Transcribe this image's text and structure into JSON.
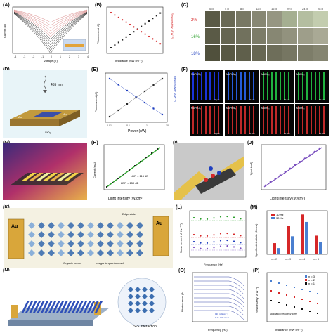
{
  "panels": {
    "A": {
      "label": "(A)",
      "ylabel": "Current (A)",
      "xlabel": "Voltage (V)",
      "xticks": [
        "-4",
        "-3",
        "-2",
        "-1",
        "0",
        "1",
        "2",
        "3",
        "4"
      ]
    },
    "B": {
      "label": "(B)",
      "ylabel_left": "Photocurrent (A)",
      "ylabel_right": "Responsivity (A W⁻¹)",
      "xlabel": "Irradiance (mW cm⁻²)"
    },
    "C": {
      "label": "(C)",
      "columns": [
        "0 d",
        "4 d",
        "8 d",
        "12 d",
        "16 d",
        "20 d",
        "24 d",
        "28 d"
      ],
      "rows": [
        "2%",
        "16%",
        "18%"
      ]
    },
    "D": {
      "label": "(D)",
      "wavelength": "455 nm",
      "electrode_left": "Au",
      "electrode_right": "Au",
      "substrate": "SiO₂"
    },
    "E": {
      "label": "(E)",
      "ylabel_left": "Photocurrent (A)",
      "ylabel_right": "Responsivity (A W⁻¹)",
      "xlabel": "Power (nW)",
      "xticks": [
        "0.01",
        "0.1",
        "1",
        "10"
      ]
    },
    "F": {
      "label": "(F)",
      "tile_labels": [
        "MAPbCl₃",
        "MAPbBr₃",
        "MAPbI₃",
        "MAPbI₃",
        "MAPbCl₃",
        "MAPbBr₃",
        "MAPbI₃",
        "MAPbI₃"
      ],
      "scale": "10 μm"
    },
    "G": {
      "label": "(G)"
    },
    "H": {
      "label": "(H)",
      "ylabel": "Current (mA)",
      "xlabel": "Light Intensity (W/cm²)",
      "ldr1": "LDR = 115 dB",
      "ldr2": "LDR = 150 dB"
    },
    "I": {
      "label": "(I)"
    },
    "J": {
      "label": "(J)",
      "ylabel": "J (mA/cm²)",
      "xlabel": "Light Intensity (W/cm²)"
    },
    "K": {
      "label": "(K)",
      "electrode_left": "Au",
      "electrode_right": "Au",
      "organic": "Organic barrier",
      "inorganic": "Inorganic quantum well",
      "edge": "Edge state"
    },
    "L": {
      "label": "(L)",
      "ylabel": "Noise current (A Hz⁻¹/²)",
      "xlabel": "Frequency (Hz)"
    },
    "M": {
      "label": "(M)",
      "ylabel": "Specific detectivity (Jones)",
      "legend": [
        "10 Hz",
        "30 Hz"
      ],
      "categories": [
        "n = 2",
        "n = 3",
        "n = 4",
        "n = 5"
      ]
    },
    "N": {
      "label": "(N)",
      "interaction": "S-S interaction"
    },
    "O": {
      "label": "(O)",
      "ylabel": "Photocurrent (A)",
      "xlabel": "Frequency (Hz)",
      "note1": "130 mW cm⁻²",
      "note2": "1.1e-4 W cm⁻²"
    },
    "P": {
      "label": "(P)",
      "ylabel": "Responsivity (A W⁻¹)",
      "xlabel": "Irradiance (mW cm⁻²)",
      "legend": [
        "n = 3",
        "n = 2",
        "n = 1"
      ],
      "note": "Modulation frequency 30Hz"
    }
  },
  "chart_data": [
    {
      "type": "bar",
      "panel": "M",
      "categories": [
        "n = 2",
        "n = 3",
        "n = 4",
        "n = 5"
      ],
      "series": [
        {
          "name": "10 Hz",
          "values": [
            1.8,
            4.6,
            6.4,
            3.0
          ]
        },
        {
          "name": "30 Hz",
          "values": [
            1.0,
            2.9,
            5.2,
            2.0
          ]
        }
      ],
      "ylim": [
        0,
        7
      ]
    },
    {
      "type": "scatter",
      "panel": "E",
      "x": [
        0.01,
        0.03,
        0.1,
        0.3,
        1,
        3,
        10
      ],
      "series": [
        {
          "values": [
            1,
            2,
            4,
            8,
            16,
            30,
            55
          ]
        },
        {
          "values": [
            55,
            40,
            28,
            18,
            12,
            8,
            5
          ]
        }
      ]
    },
    {
      "type": "scatter",
      "panel": "P",
      "series": [
        {
          "name": "n = 3",
          "values": [
            0.9,
            0.8,
            0.7,
            0.55,
            0.45,
            0.35
          ]
        },
        {
          "name": "n = 2",
          "values": [
            0.6,
            0.5,
            0.4,
            0.3,
            0.22,
            0.15
          ]
        },
        {
          "name": "n = 1",
          "values": [
            0.3,
            0.25,
            0.2,
            0.15,
            0.1,
            0.07
          ]
        }
      ]
    }
  ],
  "colors": {
    "red": "#d62728",
    "green": "#2ca02c",
    "blue": "#1f3fbf",
    "gold": "#d9a63a"
  }
}
